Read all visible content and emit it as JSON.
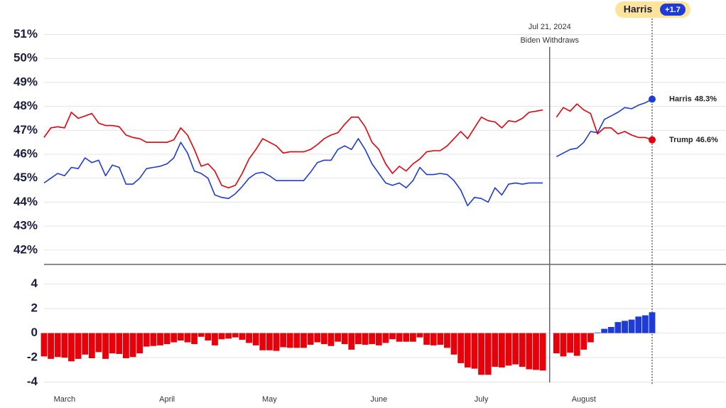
{
  "chart_data": [
    {
      "type": "line",
      "ylim": [
        41.4,
        51.55
      ],
      "yticks": [
        {
          "value": 42,
          "label": "42%"
        },
        {
          "value": 43,
          "label": "43%"
        },
        {
          "value": 44,
          "label": "44%"
        },
        {
          "value": 45,
          "label": "45%"
        },
        {
          "value": 46,
          "label": "46%"
        },
        {
          "value": 47,
          "label": "47%"
        },
        {
          "value": 48,
          "label": "48%"
        },
        {
          "value": 49,
          "label": "49%"
        },
        {
          "value": 50,
          "label": "50%"
        },
        {
          "value": 51,
          "label": "51%"
        }
      ],
      "grid": true,
      "badge": {
        "name": "Harris",
        "label": "+1.7"
      },
      "annotation": {
        "index": 74,
        "date": "Jul 21, 2024",
        "text": "Biden Withdraws"
      },
      "series": [
        {
          "name": "Harris",
          "color": "#1f3bd6",
          "values": [
            44.8,
            45.0,
            45.2,
            45.1,
            45.45,
            45.4,
            45.85,
            45.65,
            45.75,
            45.1,
            45.55,
            45.45,
            44.75,
            44.75,
            45.0,
            45.4,
            45.45,
            45.5,
            45.6,
            45.85,
            46.5,
            46.05,
            45.3,
            45.2,
            45.0,
            44.3,
            44.2,
            44.15,
            44.35,
            44.65,
            45.0,
            45.2,
            45.25,
            45.1,
            44.9,
            44.9,
            44.9,
            44.9,
            44.9,
            45.25,
            45.65,
            45.75,
            45.75,
            46.2,
            46.35,
            46.2,
            46.65,
            46.2,
            45.6,
            45.2,
            44.8,
            44.7,
            44.8,
            44.6,
            44.9,
            45.45,
            45.15,
            45.15,
            45.2,
            45.15,
            44.9,
            44.5,
            43.85,
            44.2,
            44.15,
            44.0,
            44.6,
            44.3,
            44.75,
            44.8,
            44.75,
            44.8,
            44.8,
            44.8,
            null,
            45.9,
            46.05,
            46.2,
            46.25,
            46.5,
            46.95,
            46.9,
            47.45,
            47.6,
            47.75,
            47.95,
            47.9,
            48.05,
            48.15,
            48.3
          ],
          "value_labels": [
            null,
            null,
            null,
            null,
            null,
            null,
            null,
            null,
            null,
            null,
            null,
            null,
            null,
            null,
            null,
            null,
            null,
            null,
            null,
            null,
            null,
            null,
            null,
            null,
            null,
            null,
            null,
            null,
            null,
            null,
            null,
            null,
            null,
            null,
            null,
            null,
            null,
            null,
            null,
            null,
            null,
            null,
            null,
            null,
            null,
            null,
            null,
            null,
            null,
            null,
            null,
            null,
            null,
            null,
            null,
            null,
            null,
            null,
            null,
            null,
            null,
            null,
            null,
            null,
            null,
            null,
            null,
            null,
            null,
            null,
            null,
            null,
            null,
            null,
            null,
            null,
            null,
            null,
            null,
            null,
            null,
            null,
            null,
            null,
            null,
            null,
            null,
            null,
            null,
            "48.3%"
          ]
        },
        {
          "name": "Trump",
          "color": "#e5000a",
          "values": [
            46.7,
            47.1,
            47.15,
            47.1,
            47.75,
            47.5,
            47.6,
            47.7,
            47.3,
            47.2,
            47.2,
            47.15,
            46.8,
            46.7,
            46.65,
            46.5,
            46.5,
            46.5,
            46.5,
            46.6,
            47.1,
            46.8,
            46.2,
            45.5,
            45.6,
            45.3,
            44.7,
            44.6,
            44.7,
            45.2,
            45.8,
            46.2,
            46.65,
            46.5,
            46.35,
            46.05,
            46.1,
            46.1,
            46.1,
            46.2,
            46.4,
            46.65,
            46.8,
            46.9,
            47.25,
            47.55,
            47.55,
            47.15,
            46.5,
            46.2,
            45.6,
            45.2,
            45.5,
            45.3,
            45.6,
            45.8,
            46.1,
            46.15,
            46.15,
            46.35,
            46.65,
            46.95,
            46.65,
            47.1,
            47.55,
            47.4,
            47.35,
            47.1,
            47.4,
            47.35,
            47.5,
            47.75,
            47.8,
            47.85,
            null,
            47.55,
            47.95,
            47.8,
            48.1,
            47.85,
            47.7,
            46.85,
            47.1,
            47.1,
            46.85,
            46.95,
            46.8,
            46.7,
            46.7,
            46.6
          ],
          "value_labels": [
            null,
            null,
            null,
            null,
            null,
            null,
            null,
            null,
            null,
            null,
            null,
            null,
            null,
            null,
            null,
            null,
            null,
            null,
            null,
            null,
            null,
            null,
            null,
            null,
            null,
            null,
            null,
            null,
            null,
            null,
            null,
            null,
            null,
            null,
            null,
            null,
            null,
            null,
            null,
            null,
            null,
            null,
            null,
            null,
            null,
            null,
            null,
            null,
            null,
            null,
            null,
            null,
            null,
            null,
            null,
            null,
            null,
            null,
            null,
            null,
            null,
            null,
            null,
            null,
            null,
            null,
            null,
            null,
            null,
            null,
            null,
            null,
            null,
            null,
            null,
            null,
            null,
            null,
            null,
            null,
            null,
            null,
            null,
            null,
            null,
            null,
            null,
            null,
            null,
            "46.6%"
          ]
        }
      ]
    },
    {
      "type": "bar",
      "ylim": [
        -4.6,
        5.6
      ],
      "yticks": [
        -4,
        -2,
        0,
        2,
        4
      ],
      "grid": true,
      "color_positive": "#1f3bd6",
      "color_negative": "#e5000a",
      "categories": [
        null,
        null,
        null,
        "March",
        null,
        null,
        null,
        null,
        null,
        null,
        null,
        null,
        null,
        null,
        null,
        null,
        null,
        null,
        "April",
        null,
        null,
        null,
        null,
        null,
        null,
        null,
        null,
        null,
        null,
        null,
        null,
        null,
        null,
        "May",
        null,
        null,
        null,
        null,
        null,
        null,
        null,
        null,
        null,
        null,
        null,
        null,
        null,
        null,
        null,
        "June",
        null,
        null,
        null,
        null,
        null,
        null,
        null,
        null,
        null,
        null,
        null,
        null,
        null,
        null,
        "July",
        null,
        null,
        null,
        null,
        null,
        null,
        null,
        null,
        null,
        null,
        null,
        null,
        null,
        null,
        "August",
        null,
        null,
        null,
        null,
        null,
        null,
        null,
        null,
        null,
        null
      ],
      "values": [
        -1.9,
        -2.1,
        -1.95,
        -2.0,
        -2.3,
        -2.1,
        -1.75,
        -2.05,
        -1.55,
        -2.1,
        -1.65,
        -1.7,
        -2.05,
        -1.95,
        -1.65,
        -1.1,
        -1.05,
        -1.0,
        -0.9,
        -0.75,
        -0.6,
        -0.75,
        -0.9,
        -0.3,
        -0.6,
        -1.0,
        -0.5,
        -0.45,
        -0.35,
        -0.55,
        -0.8,
        -1.0,
        -1.4,
        -1.4,
        -1.45,
        -1.15,
        -1.2,
        -1.2,
        -1.2,
        -0.95,
        -0.75,
        -0.9,
        -1.05,
        -0.7,
        -0.9,
        -1.35,
        -0.9,
        -0.95,
        -0.9,
        -1.0,
        -0.8,
        -0.5,
        -0.7,
        -0.7,
        -0.7,
        -0.35,
        -0.95,
        -1.0,
        -0.95,
        -1.2,
        -1.75,
        -2.45,
        -2.8,
        -2.9,
        -3.4,
        -3.4,
        -2.75,
        -2.8,
        -2.65,
        -2.55,
        -2.75,
        -2.95,
        -3.0,
        -3.05,
        null,
        -1.65,
        -1.9,
        -1.6,
        -1.85,
        -1.35,
        -0.75,
        0.05,
        0.35,
        0.5,
        0.9,
        1.0,
        1.1,
        1.35,
        1.45,
        1.7
      ]
    }
  ]
}
